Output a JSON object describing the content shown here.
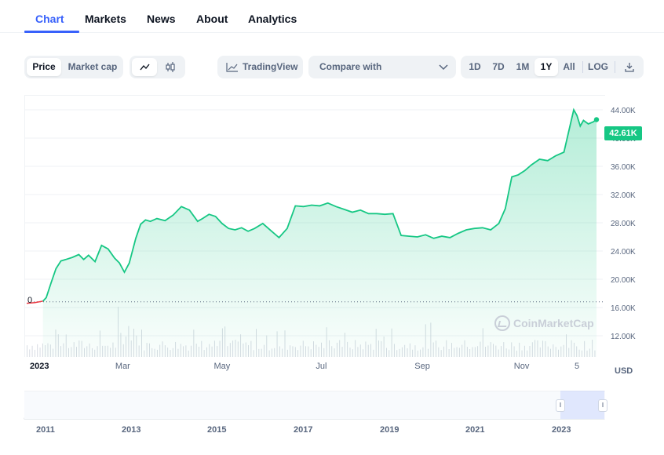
{
  "tabs": [
    "Chart",
    "Markets",
    "News",
    "About",
    "Analytics"
  ],
  "active_tab": "Chart",
  "toolbar": {
    "metric_toggle": [
      "Price",
      "Market cap"
    ],
    "active_metric": "Price",
    "tradingview_label": "TradingView",
    "compare_label": "Compare with",
    "ranges": [
      "1D",
      "7D",
      "1M",
      "1Y",
      "All"
    ],
    "active_range": "1Y",
    "log_label": "LOG"
  },
  "chart": {
    "current_price_label": "42.61K",
    "zero_label": "0",
    "currency": "USD",
    "watermark": "CoinMarketCap",
    "line_color": "#16c784",
    "pre_line_color": "#ea3943",
    "accent_color": "#3861fb"
  },
  "navigator": {
    "years": [
      "2011",
      "2013",
      "2015",
      "2017",
      "2019",
      "2021",
      "2023"
    ]
  },
  "chart_data": {
    "type": "line",
    "title": "",
    "xlabel": "",
    "ylabel": "USD",
    "ylim": [
      9000,
      45000
    ],
    "ytick_labels": [
      "44.00K",
      "40.00K",
      "36.00K",
      "32.00K",
      "28.00K",
      "24.00K",
      "20.00K",
      "16.00K",
      "12.00K"
    ],
    "ytick_values": [
      44000,
      40000,
      36000,
      32000,
      28000,
      24000,
      20000,
      16000,
      12000
    ],
    "xtick_labels": [
      "2023",
      "Mar",
      "May",
      "Jul",
      "Sep",
      "Nov",
      "5"
    ],
    "xtick_days": [
      0,
      59,
      120,
      181,
      243,
      304,
      338
    ],
    "baseline": 16800,
    "series": [
      {
        "values_x_days": [
          0,
          5,
          10,
          12,
          15,
          18,
          21,
          24,
          28,
          32,
          35,
          38,
          42,
          46,
          50,
          54,
          57,
          60,
          63,
          67,
          70,
          73,
          76,
          80,
          85,
          90,
          95,
          100,
          105,
          108,
          112,
          116,
          120,
          124,
          128,
          132,
          136,
          140,
          145,
          150,
          155,
          160,
          165,
          170,
          175,
          180,
          185,
          190,
          195,
          200,
          205,
          210,
          215,
          220,
          225,
          230,
          235,
          240,
          245,
          250,
          255,
          260,
          265,
          270,
          275,
          280,
          285,
          290,
          294,
          298,
          302,
          306,
          310,
          315,
          320,
          325,
          330,
          334,
          336,
          338,
          340,
          342,
          345,
          348,
          350
        ],
        "values_y": [
          16600,
          16700,
          16900,
          17400,
          19500,
          21500,
          22600,
          22800,
          23100,
          23500,
          22800,
          23400,
          22500,
          24800,
          24300,
          23000,
          22300,
          21000,
          22300,
          25800,
          27800,
          28400,
          28200,
          28600,
          28300,
          29100,
          30300,
          29800,
          28200,
          28600,
          29200,
          28900,
          27900,
          27200,
          27000,
          27300,
          26800,
          27200,
          27900,
          26900,
          25900,
          27200,
          30400,
          30300,
          30500,
          30400,
          30800,
          30300,
          29900,
          29500,
          29800,
          29300,
          29300,
          29200,
          29300,
          26200,
          26100,
          26000,
          26300,
          25800,
          26100,
          25900,
          26500,
          27000,
          27200,
          27300,
          27000,
          27900,
          30000,
          34500,
          34800,
          35400,
          36200,
          37000,
          36800,
          37500,
          38000,
          42000,
          44000,
          43200,
          41700,
          42500,
          42000,
          42300,
          42610
        ]
      }
    ]
  }
}
